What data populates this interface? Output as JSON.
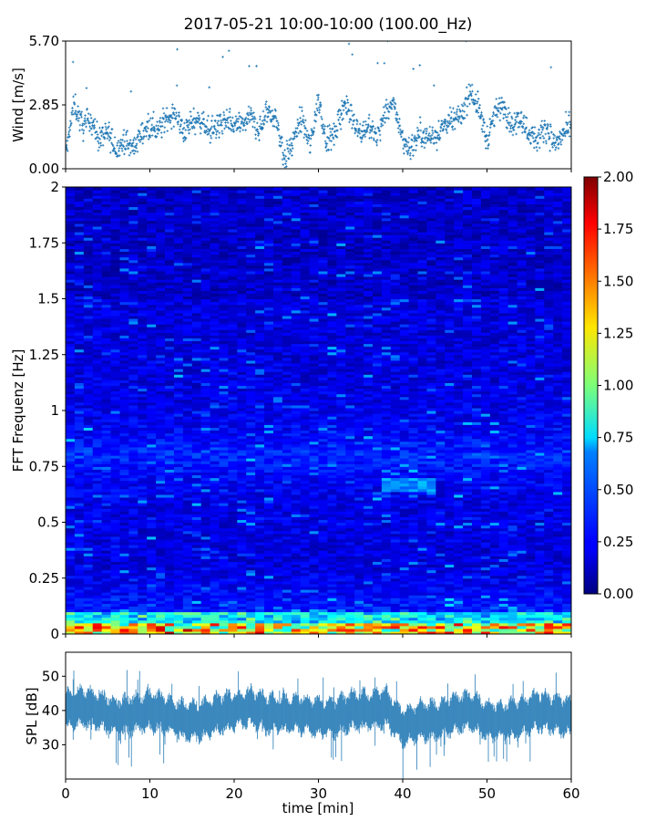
{
  "figure": {
    "title": "2017-05-21 10:00-10:00 (100.00_Hz)"
  },
  "chart_data": [
    {
      "type": "scatter",
      "id": "wind",
      "ylabel": "Wind [m/s]",
      "xlim": [
        0,
        60
      ],
      "ylim": [
        0,
        5.7
      ],
      "yticks": [
        0.0,
        2.85,
        5.7
      ],
      "ytick_labels": [
        "0.00",
        "2.85",
        "5.70"
      ],
      "xticks": [
        0,
        10,
        20,
        30,
        40,
        50,
        60
      ],
      "series": [
        {
          "color": "#1f77b4",
          "marker": "plus",
          "x": [
            0,
            1,
            2,
            3,
            4,
            5,
            6,
            7,
            8,
            9,
            10,
            11,
            12,
            13,
            14,
            15,
            16,
            17,
            18,
            19,
            20,
            21,
            22,
            23,
            24,
            25,
            26,
            27,
            28,
            29,
            30,
            31,
            32,
            33,
            34,
            35,
            36,
            37,
            38,
            39,
            40,
            41,
            42,
            43,
            44,
            45,
            46,
            47,
            48,
            49,
            50,
            51,
            52,
            53,
            54,
            55,
            56,
            57,
            58,
            59,
            60
          ],
          "y": [
            0.6,
            2.9,
            1.9,
            2.2,
            1.3,
            1.6,
            0.9,
            1.2,
            0.9,
            1.6,
            2.0,
            1.7,
            2.3,
            2.4,
            1.6,
            2.1,
            2.2,
            1.7,
            1.9,
            2.1,
            1.9,
            2.0,
            2.3,
            1.7,
            2.6,
            2.2,
            0.4,
            1.2,
            2.3,
            1.0,
            3.1,
            1.2,
            1.6,
            2.9,
            2.3,
            1.6,
            1.9,
            1.4,
            2.6,
            2.8,
            1.3,
            0.9,
            1.6,
            1.4,
            1.5,
            2.0,
            2.1,
            2.4,
            3.5,
            2.7,
            1.3,
            2.5,
            2.8,
            1.9,
            2.3,
            1.6,
            1.3,
            1.9,
            1.1,
            1.5,
            1.9
          ]
        }
      ]
    },
    {
      "type": "heatmap",
      "id": "spectrogram",
      "ylabel": "FFT Frequenz [Hz]",
      "xlim": [
        0,
        60
      ],
      "ylim": [
        0,
        2
      ],
      "yticks": [
        0,
        0.25,
        0.5,
        0.75,
        1,
        1.25,
        1.5,
        1.75,
        2
      ],
      "ytick_labels": [
        "0",
        "0.25",
        "0.5",
        "0.75",
        "1",
        "1.25",
        "1.5",
        "1.75",
        "2"
      ],
      "xticks": [
        0,
        10,
        20,
        30,
        40,
        50,
        60
      ],
      "colormap": "jet",
      "colorbar": {
        "range": [
          0,
          2
        ],
        "ticks": [
          0.0,
          0.25,
          0.5,
          0.75,
          1.0,
          1.25,
          1.5,
          1.75,
          2.0
        ],
        "tick_labels": [
          "0.00",
          "0.25",
          "0.50",
          "0.75",
          "1.00",
          "1.25",
          "1.50",
          "1.75",
          "2.00"
        ]
      }
    },
    {
      "type": "line",
      "id": "spl",
      "ylabel": "SPL [dB]",
      "xlabel": "time [min]",
      "xlim": [
        0,
        60
      ],
      "ylim": [
        20,
        57
      ],
      "yticks": [
        30,
        40,
        50
      ],
      "ytick_labels": [
        "30",
        "40",
        "50"
      ],
      "xticks": [
        0,
        10,
        20,
        30,
        40,
        50,
        60
      ],
      "xtick_labels": [
        "0",
        "10",
        "20",
        "30",
        "40",
        "50",
        "60"
      ],
      "series": [
        {
          "color": "#1f77b4",
          "x": [
            0,
            2,
            4,
            6,
            8,
            10,
            12,
            14,
            16,
            18,
            20,
            22,
            24,
            26,
            28,
            30,
            32,
            34,
            36,
            38,
            40,
            42,
            44,
            46,
            48,
            50,
            52,
            54,
            56,
            58,
            60
          ],
          "y": [
            40,
            41,
            40,
            38,
            39,
            40,
            39,
            37,
            37,
            39,
            40,
            41,
            39,
            39,
            39,
            38,
            38,
            40,
            40,
            41,
            35,
            37,
            37,
            39,
            40,
            37,
            37,
            38,
            40,
            39,
            38
          ]
        }
      ]
    }
  ]
}
